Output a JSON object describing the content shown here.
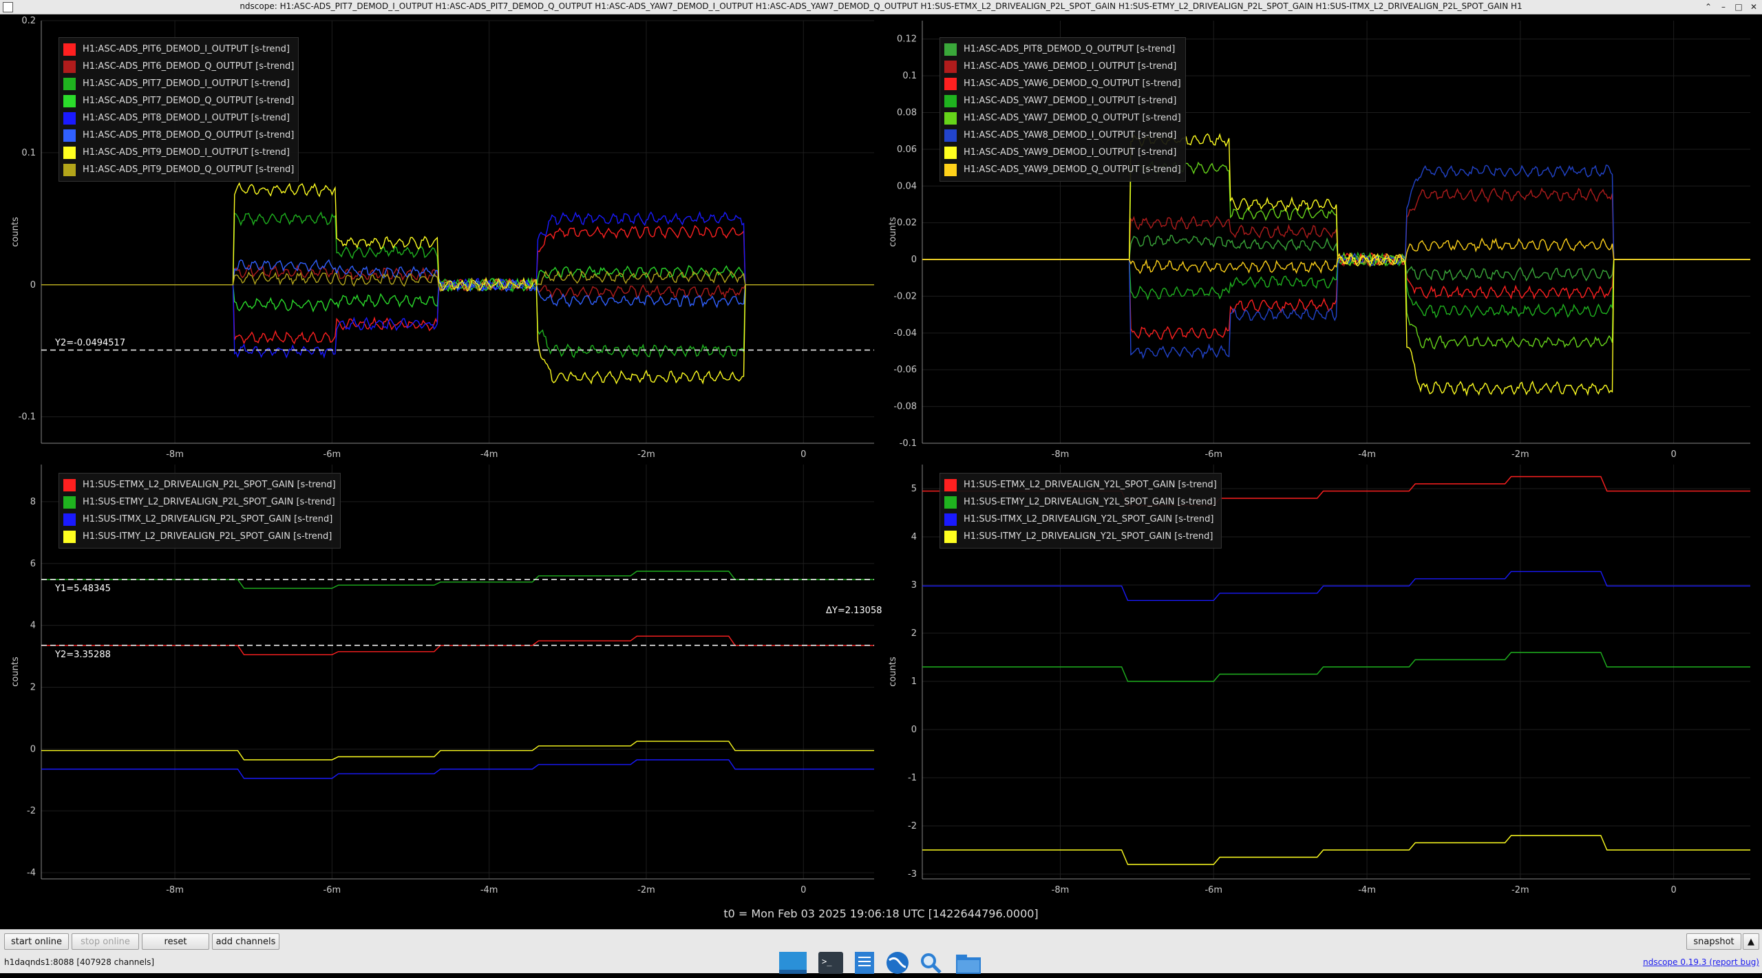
{
  "window": {
    "title": "ndscope: H1:ASC-ADS_PIT7_DEMOD_I_OUTPUT H1:ASC-ADS_PIT7_DEMOD_Q_OUTPUT H1:ASC-ADS_YAW7_DEMOD_I_OUTPUT H1:ASC-ADS_YAW7_DEMOD_Q_OUTPUT H1:SUS-ETMX_L2_DRIVEALIGN_P2L_SPOT_GAIN H1:SUS-ETMY_L2_DRIVEALIGN_P2L_SPOT_GAIN H1:SUS-ITMX_L2_DRIVEALIGN_P2L_SPOT_GAIN H1",
    "controls": {
      "minimize": "–",
      "maximize": "□",
      "close": "✕",
      "restore": "⌃"
    }
  },
  "xaxis": {
    "ticks": [
      "-8m",
      "-6m",
      "-4m",
      "-2m",
      "0"
    ]
  },
  "chart_data": [
    {
      "type": "line",
      "ylabel": "counts",
      "ylim": [
        -0.12,
        0.2
      ],
      "yticks": [
        "0.2",
        "0.1",
        "0",
        "-0.1"
      ],
      "grid": true,
      "legend": "top-left",
      "cursor": {
        "label": "Y2=-0.0494517",
        "value": -0.0494517
      },
      "series": [
        {
          "name": "H1:ASC-ADS_PIT6_DEMOD_I_OUTPUT [s-trend]",
          "color": "#ff2020",
          "levels": [
            -0.04,
            -0.03,
            0,
            0.04
          ]
        },
        {
          "name": "H1:ASC-ADS_PIT6_DEMOD_Q_OUTPUT [s-trend]",
          "color": "#b01c1c",
          "levels": [
            0.01,
            0.008,
            0,
            -0.005
          ]
        },
        {
          "name": "H1:ASC-ADS_PIT7_DEMOD_I_OUTPUT [s-trend]",
          "color": "#1fb31f",
          "levels": [
            0.05,
            0.025,
            0,
            -0.05
          ]
        },
        {
          "name": "H1:ASC-ADS_PIT7_DEMOD_Q_OUTPUT [s-trend]",
          "color": "#2bdc2b",
          "levels": [
            -0.015,
            -0.012,
            0,
            0.01
          ]
        },
        {
          "name": "H1:ASC-ADS_PIT8_DEMOD_I_OUTPUT [s-trend]",
          "color": "#1a1aff",
          "levels": [
            -0.05,
            -0.03,
            0,
            0.05
          ]
        },
        {
          "name": "H1:ASC-ADS_PIT8_DEMOD_Q_OUTPUT [s-trend]",
          "color": "#3060ff",
          "levels": [
            0.015,
            0.01,
            0,
            -0.012
          ]
        },
        {
          "name": "H1:ASC-ADS_PIT9_DEMOD_I_OUTPUT [s-trend]",
          "color": "#ffff20",
          "levels": [
            0.072,
            0.032,
            0,
            -0.07
          ]
        },
        {
          "name": "H1:ASC-ADS_PIT9_DEMOD_Q_OUTPUT [s-trend]",
          "color": "#b3a51a",
          "levels": [
            0.005,
            0.004,
            0,
            0.006
          ]
        }
      ]
    },
    {
      "type": "line",
      "ylabel": "counts",
      "ylim": [
        -0.1,
        0.13
      ],
      "yticks": [
        "0.12",
        "0.1",
        "0.08",
        "0.06",
        "0.04",
        "0.02",
        "0",
        "-0.02",
        "-0.04",
        "-0.06",
        "-0.08",
        "-0.1"
      ],
      "grid": true,
      "legend": "top-left",
      "series": [
        {
          "name": "H1:ASC-ADS_PIT8_DEMOD_Q_OUTPUT [s-trend]",
          "color": "#3aa83a",
          "levels": [
            0.01,
            0.008,
            0,
            -0.008
          ]
        },
        {
          "name": "H1:ASC-ADS_YAW6_DEMOD_I_OUTPUT [s-trend]",
          "color": "#b01c1c",
          "levels": [
            0.02,
            0.015,
            0,
            0.035
          ]
        },
        {
          "name": "H1:ASC-ADS_YAW6_DEMOD_Q_OUTPUT [s-trend]",
          "color": "#ff2020",
          "levels": [
            -0.04,
            -0.025,
            0,
            -0.018
          ]
        },
        {
          "name": "H1:ASC-ADS_YAW7_DEMOD_I_OUTPUT [s-trend]",
          "color": "#1fb31f",
          "levels": [
            -0.018,
            -0.012,
            0,
            -0.028
          ]
        },
        {
          "name": "H1:ASC-ADS_YAW7_DEMOD_Q_OUTPUT [s-trend]",
          "color": "#66d41a",
          "levels": [
            0.05,
            0.025,
            0,
            -0.045
          ]
        },
        {
          "name": "H1:ASC-ADS_YAW8_DEMOD_I_OUTPUT [s-trend]",
          "color": "#2244cc",
          "levels": [
            -0.05,
            -0.03,
            0,
            0.048
          ]
        },
        {
          "name": "H1:ASC-ADS_YAW9_DEMOD_I_OUTPUT [s-trend]",
          "color": "#ffff20",
          "levels": [
            0.065,
            0.03,
            0,
            -0.07
          ]
        },
        {
          "name": "H1:ASC-ADS_YAW9_DEMOD_Q_OUTPUT [s-trend]",
          "color": "#ffd21a",
          "levels": [
            -0.004,
            -0.004,
            0,
            0.008
          ]
        }
      ]
    },
    {
      "type": "line",
      "ylabel": "counts",
      "ylim": [
        -4.2,
        9.2
      ],
      "yticks": [
        "8",
        "6",
        "4",
        "2",
        "0",
        "-2",
        "-4"
      ],
      "grid": true,
      "legend": "top-left",
      "cursors": [
        {
          "label": "Y1=5.48345",
          "value": 5.48345
        },
        {
          "label": "Y2=3.35288",
          "value": 3.35288
        }
      ],
      "delta_label": "ΔY=2.13058",
      "series": [
        {
          "name": "H1:SUS-ETMX_L2_DRIVEALIGN_P2L_SPOT_GAIN [s-trend]",
          "color": "#ff2020",
          "steps": [
            3.35,
            3.05,
            3.15,
            3.35,
            3.5,
            3.65,
            3.35
          ]
        },
        {
          "name": "H1:SUS-ETMY_L2_DRIVEALIGN_P2L_SPOT_GAIN [s-trend]",
          "color": "#1fb31f",
          "steps": [
            5.48,
            5.2,
            5.3,
            5.4,
            5.6,
            5.75,
            5.48
          ]
        },
        {
          "name": "H1:SUS-ITMX_L2_DRIVEALIGN_P2L_SPOT_GAIN [s-trend]",
          "color": "#1a1aff",
          "steps": [
            -0.65,
            -0.95,
            -0.8,
            -0.65,
            -0.5,
            -0.35,
            -0.65
          ]
        },
        {
          "name": "H1:SUS-ITMY_L2_DRIVEALIGN_P2L_SPOT_GAIN [s-trend]",
          "color": "#ffff20",
          "steps": [
            -0.05,
            -0.35,
            -0.25,
            -0.05,
            0.1,
            0.25,
            -0.05
          ]
        }
      ]
    },
    {
      "type": "line",
      "ylabel": "counts",
      "ylim": [
        -3.1,
        5.5
      ],
      "yticks": [
        "5",
        "4",
        "3",
        "2",
        "1",
        "0",
        "-1",
        "-2",
        "-3"
      ],
      "grid": true,
      "legend": "top-left",
      "series": [
        {
          "name": "H1:SUS-ETMX_L2_DRIVEALIGN_Y2L_SPOT_GAIN [s-trend]",
          "color": "#ff2020",
          "steps": [
            4.95,
            4.65,
            4.8,
            4.95,
            5.1,
            5.25,
            4.95
          ]
        },
        {
          "name": "H1:SUS-ETMY_L2_DRIVEALIGN_Y2L_SPOT_GAIN [s-trend]",
          "color": "#1fb31f",
          "steps": [
            1.3,
            1.0,
            1.15,
            1.3,
            1.45,
            1.6,
            1.3
          ]
        },
        {
          "name": "H1:SUS-ITMX_L2_DRIVEALIGN_Y2L_SPOT_GAIN [s-trend]",
          "color": "#1a1aff",
          "steps": [
            2.98,
            2.68,
            2.83,
            2.98,
            3.13,
            3.28,
            2.98
          ]
        },
        {
          "name": "H1:SUS-ITMY_L2_DRIVEALIGN_Y2L_SPOT_GAIN [s-trend]",
          "color": "#ffff20",
          "steps": [
            -2.5,
            -2.8,
            -2.65,
            -2.5,
            -2.35,
            -2.2,
            -2.5
          ]
        }
      ]
    }
  ],
  "footer": {
    "t0": "t0 = Mon Feb 03 2025 19:06:18 UTC [1422644796.0000]",
    "start_online": "start online",
    "stop_online": "stop online",
    "reset": "reset",
    "add_channels": "add channels",
    "snapshot": "snapshot",
    "status": "h1daqnds1:8088  [407928 channels]",
    "version": "ndscope 0.19.3 (report bug)"
  },
  "dock_icons": [
    "desktop-icon",
    "terminal-icon",
    "text-editor-icon",
    "browser-globe-icon",
    "search-icon",
    "folder-icon"
  ]
}
